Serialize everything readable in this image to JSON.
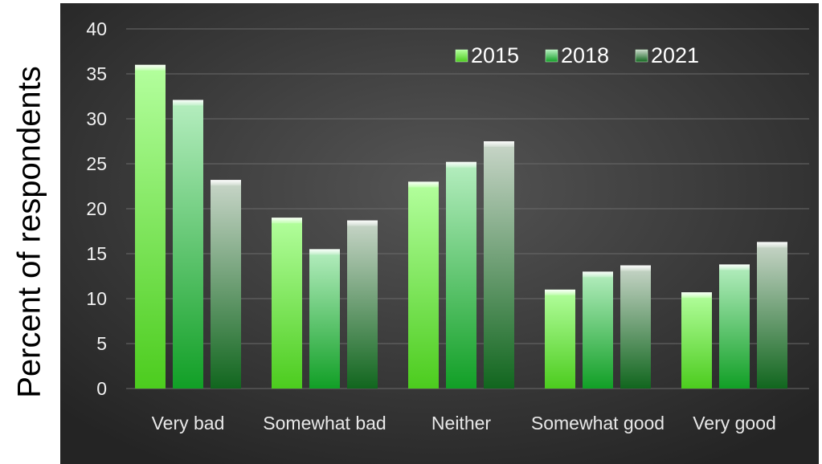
{
  "chart_data": {
    "type": "bar",
    "categories": [
      "Very bad",
      "Somewhat bad",
      "Neither",
      "Somewhat good",
      "Very good"
    ],
    "series": [
      {
        "name": "2015",
        "values": [
          36.0,
          19.0,
          23.0,
          11.0,
          10.7
        ],
        "color": "#7ee36a"
      },
      {
        "name": "2018",
        "values": [
          32.1,
          15.5,
          25.2,
          13.0,
          13.8
        ],
        "color": "#2fae3a"
      },
      {
        "name": "2021",
        "values": [
          23.2,
          18.7,
          27.5,
          13.7,
          16.3
        ],
        "color": "#2f7a3a"
      }
    ],
    "ylabel": "Percent of respondents",
    "xlabel": "",
    "ylim": [
      0,
      40
    ],
    "yticks": [
      "0",
      "5",
      "10",
      "15",
      "20",
      "25",
      "30",
      "35",
      "40"
    ],
    "grid": true,
    "legend_position": "top-right",
    "background": "#3b3b3b"
  }
}
